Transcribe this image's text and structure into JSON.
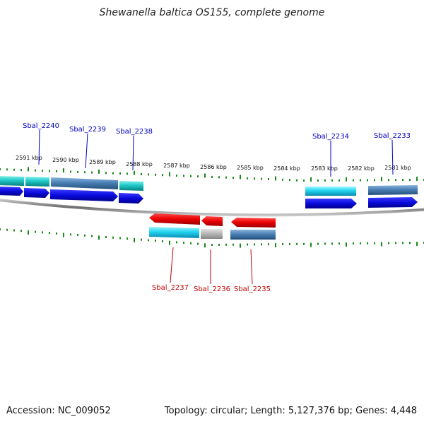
{
  "title": "Shewanella baltica OS155, complete genome",
  "footer": {
    "accession": "Accession: NC_009052",
    "summary": "Topology: circular; Length: 5,127,376 bp; Genes: 4,448"
  },
  "scale": {
    "labels": [
      "2591 kbp",
      "2590 kbp",
      "2589 kbp",
      "2588 kbp",
      "2587 kbp",
      "2586 kbp",
      "2585 kbp",
      "2584 kbp",
      "2583 kbp",
      "2582 kbp",
      "2581 kbp"
    ]
  },
  "genes": [
    {
      "name": "Sbal_2240",
      "strand": "+",
      "color": "#0000c0"
    },
    {
      "name": "Sbal_2239",
      "strand": "+",
      "color": "#0000c0"
    },
    {
      "name": "Sbal_2238",
      "strand": "+",
      "color": "#0000c0"
    },
    {
      "name": "Sbal_2237",
      "strand": "-",
      "color": "#c00000"
    },
    {
      "name": "Sbal_2236",
      "strand": "-",
      "color": "#c00000"
    },
    {
      "name": "Sbal_2235",
      "strand": "-",
      "color": "#c00000"
    },
    {
      "name": "Sbal_2234",
      "strand": "+",
      "color": "#0000c0"
    },
    {
      "name": "Sbal_2233",
      "strand": "+",
      "color": "#0000c0"
    }
  ],
  "colors": {
    "forward_arrow": "#0a0adc",
    "reverse_arrow": "#e80000",
    "cog_cyan": "#22d4ee",
    "cog_steel": "#4a7fb5",
    "cog_gray": "#b4b4b4",
    "tick": "#1a8a1a",
    "backbone": "#8a8a8a"
  }
}
